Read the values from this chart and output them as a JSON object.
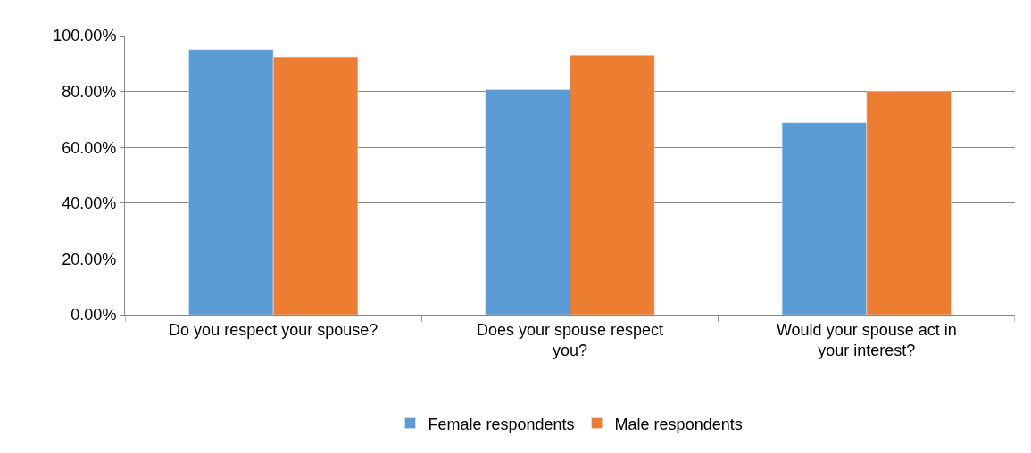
{
  "chart_data": {
    "type": "bar",
    "categories": [
      "Do you respect your spouse?",
      "Does your spouse respect you?",
      "Would your spouse act in your interest?"
    ],
    "series": [
      {
        "name": "Female respondents",
        "color": "#5b9bd5",
        "values": [
          95,
          80.7,
          68.8
        ]
      },
      {
        "name": "Male respondents",
        "color": "#ed7d31",
        "values": [
          92.3,
          92.9,
          80.1
        ]
      }
    ],
    "ylim": [
      0,
      100
    ],
    "yticks": [
      {
        "value": 0,
        "label": "0.00%"
      },
      {
        "value": 20,
        "label": "20.00%"
      },
      {
        "value": 40,
        "label": "40.00%"
      },
      {
        "value": 60,
        "label": "60.00%"
      },
      {
        "value": 80,
        "label": "80.00%"
      },
      {
        "value": 100,
        "label": "100.00%"
      }
    ],
    "grid": "y",
    "legend": "bottom"
  }
}
